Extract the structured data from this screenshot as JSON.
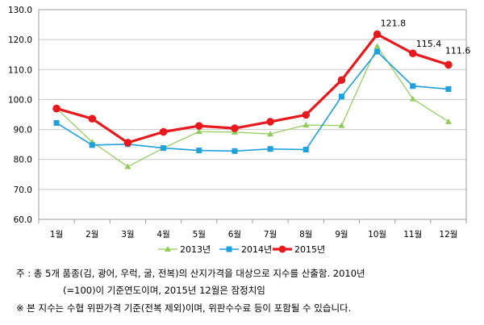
{
  "chart_data": {
    "type": "line",
    "categories": [
      "1월",
      "2월",
      "3월",
      "4월",
      "5월",
      "6월",
      "7월",
      "8월",
      "9월",
      "10월",
      "11월",
      "12월"
    ],
    "ylim": [
      60,
      130
    ],
    "yticks": [
      "60.0",
      "70.0",
      "80.0",
      "90.0",
      "100.0",
      "110.0",
      "120.0",
      "130.0"
    ],
    "grid": true,
    "legend_position": "bottom",
    "series": [
      {
        "name": "2013년",
        "color": "#8fcc5a",
        "marker": "triangle",
        "values": [
          97.0,
          85.8,
          77.6,
          83.8,
          89.3,
          89.1,
          88.5,
          91.5,
          91.3,
          117.8,
          100.2,
          92.6
        ]
      },
      {
        "name": "2014년",
        "color": "#1ea0dd",
        "marker": "square",
        "values": [
          92.2,
          84.8,
          85.1,
          83.8,
          83.0,
          82.8,
          83.5,
          83.3,
          101.0,
          116.0,
          104.5,
          103.5
        ]
      },
      {
        "name": "2015년",
        "color": "#e8191c",
        "marker": "circle",
        "values": [
          97.0,
          93.6,
          85.6,
          89.2,
          91.2,
          90.4,
          92.6,
          94.9,
          106.5,
          121.8,
          115.4,
          111.6
        ]
      }
    ],
    "data_labels": [
      {
        "series": 2,
        "index": 9,
        "text": "121.8"
      },
      {
        "series": 2,
        "index": 10,
        "text": "115.4"
      },
      {
        "series": 2,
        "index": 11,
        "text": "111.6"
      }
    ]
  },
  "notes": {
    "line1": "주 : 총 5개 품종(김, 광어, 우럭, 굴, 전복)의 산지가격을 대상으로 지수를 산출함. 2010년",
    "line2": "(=100)이 기준연도이며, 2015년 12월은 잠정치임",
    "line3": "※ 본 지수는 수협 위판가격 기준(전복 제외)이며, 위판수수료 등이 포함될 수 있습니다."
  }
}
